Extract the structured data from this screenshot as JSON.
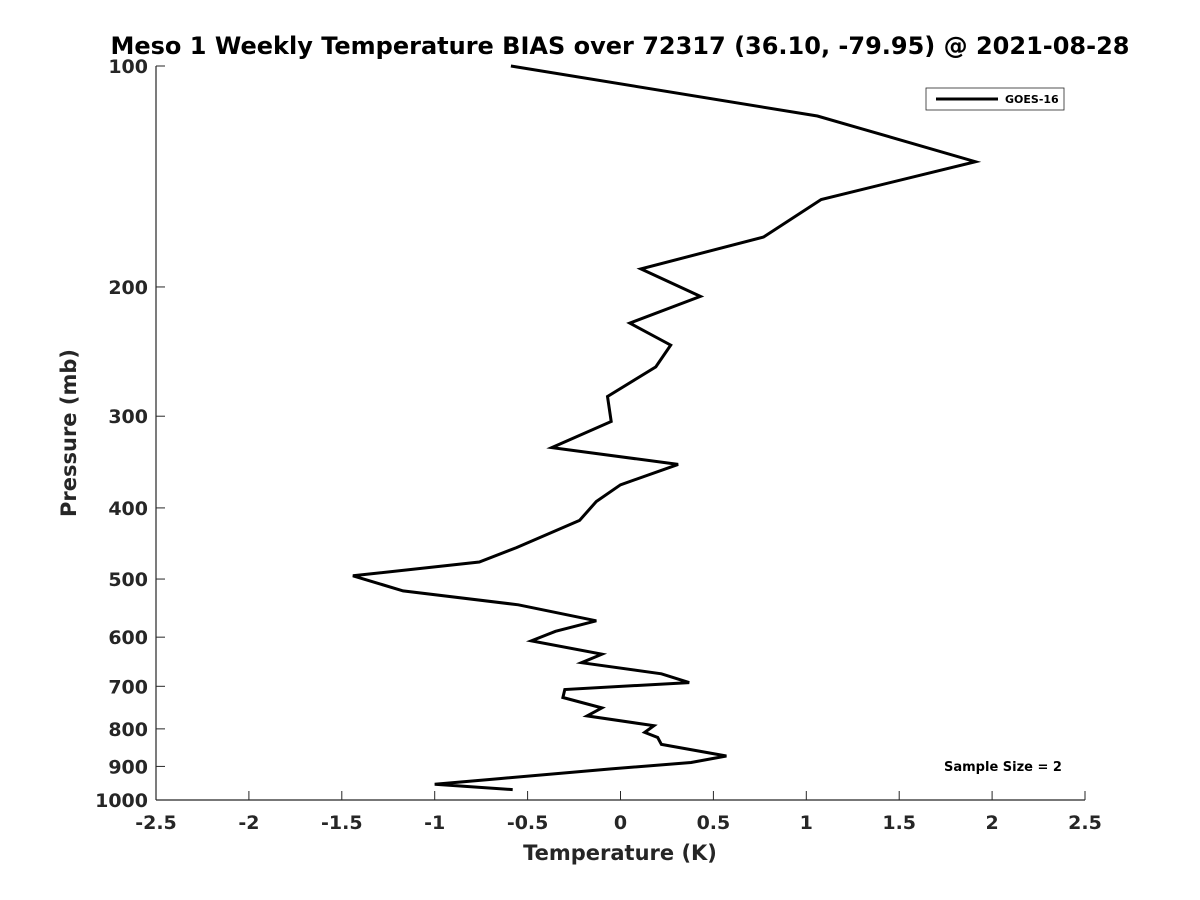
{
  "chart_data": {
    "type": "line",
    "title": "Meso 1 Weekly Temperature BIAS over 72317 (36.10, -79.95) @ 2021-08-28",
    "xlabel": "Temperature (K)",
    "ylabel": "Pressure (mb)",
    "xlim": [
      -2.5,
      2.5
    ],
    "ylim": [
      100,
      1000
    ],
    "y_scale": "log",
    "y_reversed": true,
    "x_ticks": [
      -2.5,
      -2,
      -1.5,
      -1,
      -0.5,
      0,
      0.5,
      1,
      1.5,
      2,
      2.5
    ],
    "x_tick_labels": [
      "-2.5",
      "-2",
      "-1.5",
      "-1",
      "-0.5",
      "0",
      "0.5",
      "1",
      "1.5",
      "2",
      "2.5"
    ],
    "y_ticks": [
      100,
      200,
      300,
      400,
      500,
      600,
      700,
      800,
      900,
      1000
    ],
    "y_tick_labels": [
      "100",
      "200",
      "300",
      "400",
      "500",
      "600",
      "700",
      "800",
      "900",
      "1000"
    ],
    "grid": false,
    "legend_position": "top-right",
    "line_color": "#000000",
    "series": [
      {
        "name": "GOES-16",
        "x": [
          -0.59,
          1.06,
          1.91,
          1.08,
          0.77,
          0.11,
          0.43,
          0.05,
          0.27,
          0.19,
          -0.07,
          -0.05,
          -0.37,
          0.31,
          0.0,
          -0.13,
          -0.22,
          -0.56,
          -0.76,
          -1.44,
          -1.17,
          -0.55,
          -0.13,
          -0.35,
          -0.48,
          -0.1,
          -0.21,
          0.22,
          0.37,
          -0.3,
          -0.31,
          -0.1,
          -0.18,
          0.18,
          0.13,
          0.2,
          0.22,
          0.57,
          0.38,
          -0.05,
          -0.65,
          -1.0,
          -0.58
        ],
        "y": [
          100,
          117,
          135,
          152,
          171,
          189,
          206,
          224,
          240,
          257,
          282,
          305,
          331,
          349,
          372,
          392,
          416,
          453,
          474,
          495,
          519,
          542,
          570,
          589,
          607,
          633,
          650,
          673,
          692,
          707,
          725,
          749,
          768,
          792,
          809,
          822,
          840,
          871,
          889,
          907,
          935,
          952,
          968
        ]
      }
    ],
    "annotation": "Sample Size = 2"
  }
}
